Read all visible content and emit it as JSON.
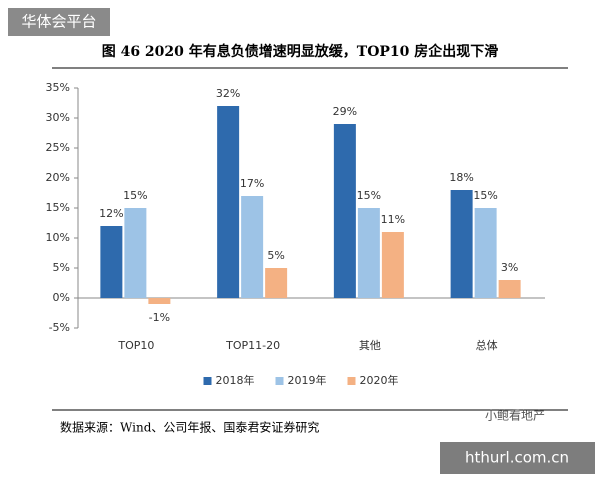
{
  "badge": "华体会平台",
  "chart_data": {
    "type": "bar",
    "title": "图 46   2020 年有息负债增速明显放缓，TOP10 房企出现下滑",
    "categories": [
      "TOP10",
      "TOP11-20",
      "其他",
      "总体"
    ],
    "series": [
      {
        "name": "2018年",
        "color": "#2e6aad",
        "values": [
          12,
          32,
          29,
          18
        ],
        "value_labels": [
          "12%",
          "32%",
          "29%",
          "18%"
        ]
      },
      {
        "name": "2019年",
        "color": "#9dc3e6",
        "values": [
          15,
          17,
          15,
          15
        ],
        "value_labels": [
          "15%",
          "17%",
          "15%",
          "15%"
        ]
      },
      {
        "name": "2020年",
        "color": "#f4b183",
        "values": [
          -1,
          5,
          11,
          3
        ],
        "value_labels": [
          "-1%",
          "5%",
          "11%",
          "3%"
        ]
      }
    ],
    "ylim": [
      -5,
      35
    ],
    "yticks": [
      {
        "value": -5,
        "label": "-5%"
      },
      {
        "value": 0,
        "label": "0%"
      },
      {
        "value": 5,
        "label": "5%"
      },
      {
        "value": 10,
        "label": "10%"
      },
      {
        "value": 15,
        "label": "15%"
      },
      {
        "value": 20,
        "label": "20%"
      },
      {
        "value": 25,
        "label": "25%"
      },
      {
        "value": 30,
        "label": "30%"
      },
      {
        "value": 35,
        "label": "35%"
      }
    ],
    "grid": false,
    "legend": "bottom"
  },
  "source": "数据来源：Wind、公司年报、国泰君安证券研究",
  "watermark": "小鲍看地产",
  "site": "hthurl.com.cn"
}
